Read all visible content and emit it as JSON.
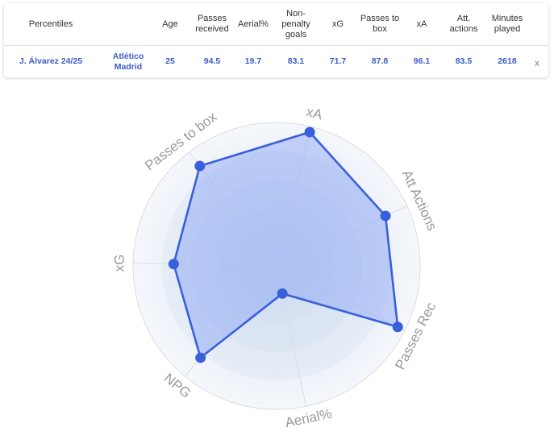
{
  "table": {
    "headers": {
      "percentiles": "Percentiles",
      "age": "Age",
      "passes_received": "Passes received",
      "aerial": "Aerial%",
      "npg": "Non-penalty goals",
      "xg": "xG",
      "passes_to_box": "Passes to box",
      "xa": "xA",
      "att_actions": "Att. actions",
      "minutes": "Minutes played"
    },
    "row": {
      "player": "J. Álvarez 24/25",
      "team": "Atlético Madrid",
      "age": "25",
      "passes_received": "94.5",
      "aerial": "19.7",
      "npg": "83.1",
      "xg": "71.7",
      "passes_to_box": "87.8",
      "xa": "96.1",
      "att_actions": "83.5",
      "minutes": "2618"
    },
    "close_label": "x"
  },
  "chart_data": {
    "type": "radar",
    "axes": [
      "xA",
      "Att Actions",
      "Passes Rec",
      "Aerial%",
      "NPG",
      "xG",
      "Passes to box"
    ],
    "values": [
      96.1,
      83.5,
      94.5,
      19.7,
      83.1,
      71.7,
      87.8
    ],
    "range": [
      0,
      100
    ],
    "colors": {
      "fill": "#7f9cf5",
      "stroke": "#3a5fdb",
      "point": "#3a5fdb",
      "ring_outer": "#f5f7fb",
      "ring_inner": "#d9e4f3",
      "grid_line": "#dddddd",
      "axis_label": "#9a9a9a"
    }
  }
}
